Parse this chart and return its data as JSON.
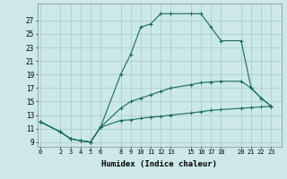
{
  "xlabel": "Humidex (Indice chaleur)",
  "bg_color": "#cce8e8",
  "grid_color": "#aacece",
  "line_color": "#1a6b5a",
  "series": [
    {
      "x": [
        0,
        2,
        3,
        4,
        5,
        6,
        8,
        9,
        10,
        11,
        12,
        13,
        15,
        16,
        17,
        18,
        20,
        21,
        22,
        23
      ],
      "y": [
        12.0,
        10.5,
        9.5,
        9.2,
        9.0,
        11.2,
        12.2,
        12.3,
        12.5,
        12.7,
        12.8,
        13.0,
        13.3,
        13.5,
        13.7,
        13.8,
        14.0,
        14.1,
        14.2,
        14.3
      ]
    },
    {
      "x": [
        0,
        2,
        3,
        4,
        5,
        6,
        8,
        9,
        10,
        11,
        12,
        13,
        15,
        16,
        17,
        18,
        20,
        21,
        22,
        23
      ],
      "y": [
        12.0,
        10.5,
        9.5,
        9.2,
        9.0,
        11.2,
        14.0,
        15.0,
        15.5,
        16.0,
        16.5,
        17.0,
        17.5,
        17.8,
        17.9,
        18.0,
        18.0,
        17.0,
        15.5,
        14.3
      ]
    },
    {
      "x": [
        0,
        2,
        3,
        4,
        5,
        6,
        8,
        9,
        10,
        11,
        12,
        13,
        15,
        16,
        17,
        18,
        20,
        21,
        22,
        23
      ],
      "y": [
        12.0,
        10.5,
        9.5,
        9.2,
        9.0,
        11.2,
        19.0,
        22.0,
        26.0,
        26.5,
        28.0,
        28.0,
        28.0,
        28.0,
        26.0,
        24.0,
        24.0,
        17.0,
        15.5,
        14.3
      ]
    }
  ],
  "yticks": [
    9,
    11,
    13,
    15,
    17,
    19,
    21,
    23,
    25,
    27
  ],
  "xticks": [
    0,
    2,
    3,
    4,
    5,
    6,
    8,
    9,
    10,
    11,
    12,
    13,
    15,
    16,
    17,
    18,
    20,
    21,
    22,
    23
  ],
  "ylim": [
    8.3,
    29.5
  ],
  "xlim": [
    -0.3,
    24.0
  ]
}
